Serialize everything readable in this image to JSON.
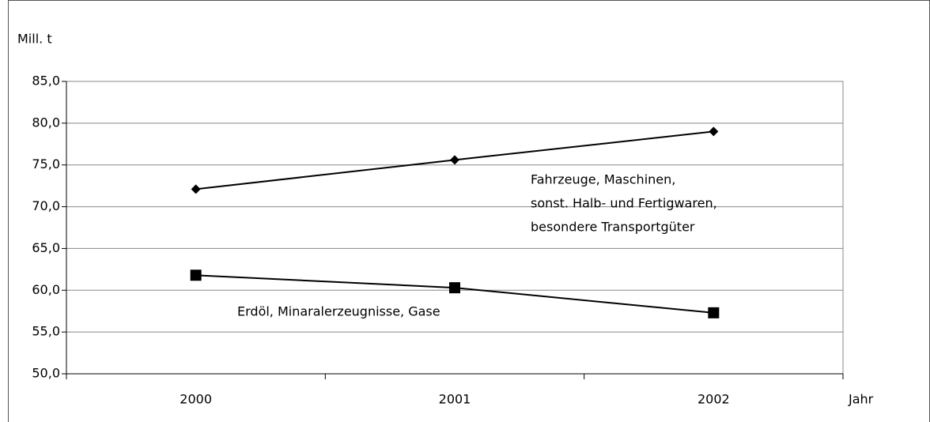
{
  "chart_data": {
    "type": "line",
    "y_axis_label": "Mill. t",
    "x_axis_label": "Jahr",
    "categories": [
      "2000",
      "2001",
      "2002"
    ],
    "series": [
      {
        "name": [
          "Fahrzeuge, Maschinen,",
          "sonst. Halb- und Fertigwaren,",
          "besondere Transportgüter"
        ],
        "color": "#000000",
        "marker": "diamond",
        "values": [
          72.1,
          75.6,
          79.0
        ]
      },
      {
        "name": [
          "Erdöl, Minaralerzeugnisse, Gase"
        ],
        "color": "#000000",
        "marker": "square",
        "values": [
          61.8,
          60.3,
          57.3
        ]
      }
    ],
    "ylim": [
      50,
      85
    ],
    "yticks": [
      {
        "value": 50,
        "label": "50,0"
      },
      {
        "value": 55,
        "label": "55,0"
      },
      {
        "value": 60,
        "label": "60,0"
      },
      {
        "value": 65,
        "label": "65,0"
      },
      {
        "value": 70,
        "label": "70,0"
      },
      {
        "value": 75,
        "label": "75,0"
      },
      {
        "value": 80,
        "label": "80,0"
      },
      {
        "value": 85,
        "label": "85,0"
      }
    ],
    "grid": true
  }
}
